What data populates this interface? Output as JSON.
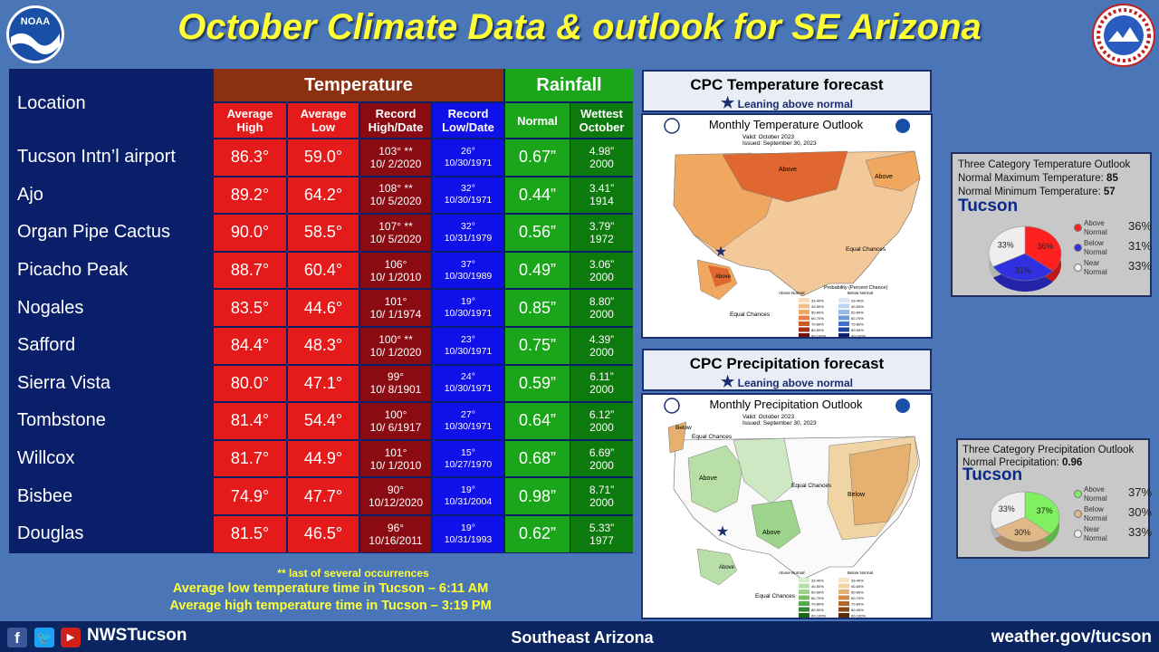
{
  "title": "October Climate Data & outlook for SE Arizona",
  "table": {
    "location_header": "Location",
    "temperature_header": "Temperature",
    "rainfall_header": "Rainfall",
    "col_avg_high": [
      "Average",
      "High"
    ],
    "col_avg_low": [
      "Average",
      "Low"
    ],
    "col_rec_high": [
      "Record",
      "High/Date"
    ],
    "col_rec_low": [
      "Record",
      "Low/Date"
    ],
    "col_normal": "Normal",
    "col_wettest": [
      "Wettest",
      "October"
    ],
    "rows": [
      {
        "loc": "Tucson Intn’l airport",
        "high": "86.3°",
        "low": "59.0°",
        "rh": "103° **",
        "rhd": "10/ 2/2020",
        "rl": "26°",
        "rld": "10/30/1971",
        "norm": "0.67”",
        "wet": "4.98”",
        "wety": "2000"
      },
      {
        "loc": "Ajo",
        "high": "89.2°",
        "low": "64.2°",
        "rh": "108° **",
        "rhd": "10/ 5/2020",
        "rl": "32°",
        "rld": "10/30/1971",
        "norm": "0.44”",
        "wet": "3.41”",
        "wety": "1914"
      },
      {
        "loc": "Organ Pipe Cactus",
        "high": "90.0°",
        "low": "58.5°",
        "rh": "107° **",
        "rhd": "10/ 5/2020",
        "rl": "32°",
        "rld": "10/31/1979",
        "norm": "0.56”",
        "wet": "3.79”",
        "wety": "1972"
      },
      {
        "loc": "Picacho Peak",
        "high": "88.7°",
        "low": "60.4°",
        "rh": "106°",
        "rhd": "10/ 1/2010",
        "rl": "37°",
        "rld": "10/30/1989",
        "norm": "0.49”",
        "wet": "3.06”",
        "wety": "2000"
      },
      {
        "loc": "Nogales",
        "high": "83.5°",
        "low": "44.6°",
        "rh": "101°",
        "rhd": "10/ 1/1974",
        "rl": "19°",
        "rld": "10/30/1971",
        "norm": "0.85”",
        "wet": "8.80”",
        "wety": "2000"
      },
      {
        "loc": "Safford",
        "high": "84.4°",
        "low": "48.3°",
        "rh": "100° **",
        "rhd": "10/ 1/2020",
        "rl": "23°",
        "rld": "10/30/1971",
        "norm": "0.75”",
        "wet": "4.39”",
        "wety": "2000"
      },
      {
        "loc": "Sierra Vista",
        "high": "80.0°",
        "low": "47.1°",
        "rh": "99°",
        "rhd": "10/ 8/1901",
        "rl": "24°",
        "rld": "10/30/1971",
        "norm": "0.59”",
        "wet": "6.11”",
        "wety": "2000"
      },
      {
        "loc": "Tombstone",
        "high": "81.4°",
        "low": "54.4°",
        "rh": "100°",
        "rhd": "10/ 6/1917",
        "rl": "27°",
        "rld": "10/30/1971",
        "norm": "0.64”",
        "wet": "6.12”",
        "wety": "2000"
      },
      {
        "loc": "Willcox",
        "high": "81.7°",
        "low": "44.9°",
        "rh": "101°",
        "rhd": "10/ 1/2010",
        "rl": "15°",
        "rld": "10/27/1970",
        "norm": "0.68”",
        "wet": "6.69”",
        "wety": "2000"
      },
      {
        "loc": "Bisbee",
        "high": "74.9°",
        "low": "47.7°",
        "rh": "90°",
        "rhd": "10/12/2020",
        "rl": "19°",
        "rld": "10/31/2004",
        "norm": "0.98”",
        "wet": "8.71”",
        "wety": "2000"
      },
      {
        "loc": "Douglas",
        "high": "81.5°",
        "low": "46.5°",
        "rh": "96°",
        "rhd": "10/16/2011",
        "rl": "19°",
        "rld": "10/31/1993",
        "norm": "0.62”",
        "wet": "5.33”",
        "wety": "1977"
      }
    ]
  },
  "notes": {
    "occurrences": "** last of several occurrences",
    "low_time": "Average low temperature time in Tucson – 6:11 AM",
    "high_time": "Average high temperature time in Tucson – 3:19 PM"
  },
  "temp_panel": {
    "title": "CPC Temperature forecast",
    "subtitle": "Leaning above normal",
    "map_title": "Monthly Temperature Outlook",
    "valid": "Valid:  October 2023",
    "issued": "Issued:  September 30, 2023",
    "labels": {
      "above1": "Above",
      "above2": "Above",
      "above3": "Above",
      "equal1": "Equal Chances",
      "equal2": "Equal Chances"
    }
  },
  "precip_panel": {
    "title": "CPC Precipitation forecast",
    "subtitle": "Leaning above normal",
    "map_title": "Monthly Precipitation Outlook",
    "valid": "Valid:  October 2023",
    "issued": "Issued:  September 30, 2023",
    "labels": {
      "below1": "Below",
      "equal1": "Equal Chances",
      "above1": "Above",
      "equal2": "Equal Chances",
      "below2": "Below",
      "above2": "Above",
      "above3": "Above",
      "equal3": "Equal Chances"
    }
  },
  "legend_headers": {
    "above": "Above Normal",
    "below": "Below Normal",
    "title": "Probability (Percent Chance)",
    "rows": [
      "33-40%",
      "40-50%",
      "50-60%",
      "60-70%",
      "70-80%",
      "80-90%",
      "90-100%"
    ]
  },
  "temp_box": {
    "title": "Three Category Temperature Outlook",
    "max_label": "Normal Maximum Temperature:",
    "max_val": "85",
    "min_label": "Normal Minimum Temperature:",
    "min_val": "57",
    "city": "Tucson",
    "above_label": [
      "Above",
      "Normal"
    ],
    "above_pct": "36%",
    "below_label": [
      "Below",
      "Normal"
    ],
    "below_pct": "31%",
    "near_label": [
      "Near",
      "Normal"
    ],
    "near_pct": "33%",
    "colors": {
      "above": "#ff2020",
      "below": "#3030e0",
      "near": "#eeeeee"
    }
  },
  "precip_box": {
    "title": "Three Category Precipitation Outlook",
    "norm_label": "Normal Precipitation:",
    "norm_val": "0.96",
    "city": "Tucson",
    "above_label": [
      "Above",
      "Normal"
    ],
    "above_pct": "37%",
    "below_label": [
      "Below",
      "Normal"
    ],
    "below_pct": "30%",
    "near_label": [
      "Near",
      "Normal"
    ],
    "near_pct": "33%",
    "colors": {
      "above": "#80f060",
      "below": "#e0b888",
      "near": "#eeeeee"
    }
  },
  "footer": {
    "handle": "NWSTucson",
    "region": "Southeast Arizona",
    "url": "weather.gov/tucson"
  },
  "logos": {
    "noaa": "NOAA"
  }
}
